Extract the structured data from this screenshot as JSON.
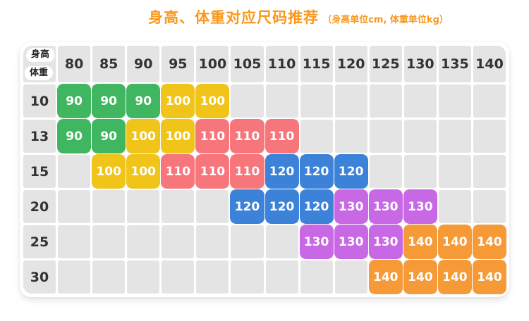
{
  "title": {
    "main": "身高、体重对应尺码推荐",
    "sub": "（身高单位cm, 体重单位kg）"
  },
  "table": {
    "corner_top": "身高",
    "corner_bottom": "体重"
  },
  "size_colors": {
    "90": "#3FB65F",
    "100": "#F0C419",
    "110": "#F7767C",
    "120": "#3C82D9",
    "130": "#C968E5",
    "140": "#F69A37"
  },
  "accent_color": "#FA981E",
  "empty_cell_color": "#E4E4E4",
  "chart_data": {
    "type": "table",
    "title": "身高、体重对应尺码推荐",
    "subtitle": "（身高单位cm, 体重单位kg）",
    "column_header_label": "身高",
    "row_header_label": "体重",
    "columns": [
      "80",
      "85",
      "90",
      "95",
      "100",
      "105",
      "110",
      "115",
      "120",
      "125",
      "130",
      "135",
      "140"
    ],
    "rows": [
      "10",
      "13",
      "15",
      "20",
      "25",
      "30"
    ],
    "matrix": [
      [
        "90",
        "90",
        "90",
        "100",
        "100",
        "",
        "",
        "",
        "",
        "",
        "",
        "",
        ""
      ],
      [
        "90",
        "90",
        "100",
        "100",
        "110",
        "110",
        "110",
        "",
        "",
        "",
        "",
        "",
        ""
      ],
      [
        "",
        "100",
        "100",
        "110",
        "110",
        "110",
        "120",
        "120",
        "120",
        "",
        "",
        "",
        ""
      ],
      [
        "",
        "",
        "",
        "",
        "",
        "120",
        "120",
        "120",
        "130",
        "130",
        "130",
        "",
        ""
      ],
      [
        "",
        "",
        "",
        "",
        "",
        "",
        "",
        "130",
        "130",
        "130",
        "140",
        "140",
        "140"
      ],
      [
        "",
        "",
        "",
        "",
        "",
        "",
        "",
        "",
        "",
        "140",
        "140",
        "140",
        "140"
      ]
    ]
  }
}
